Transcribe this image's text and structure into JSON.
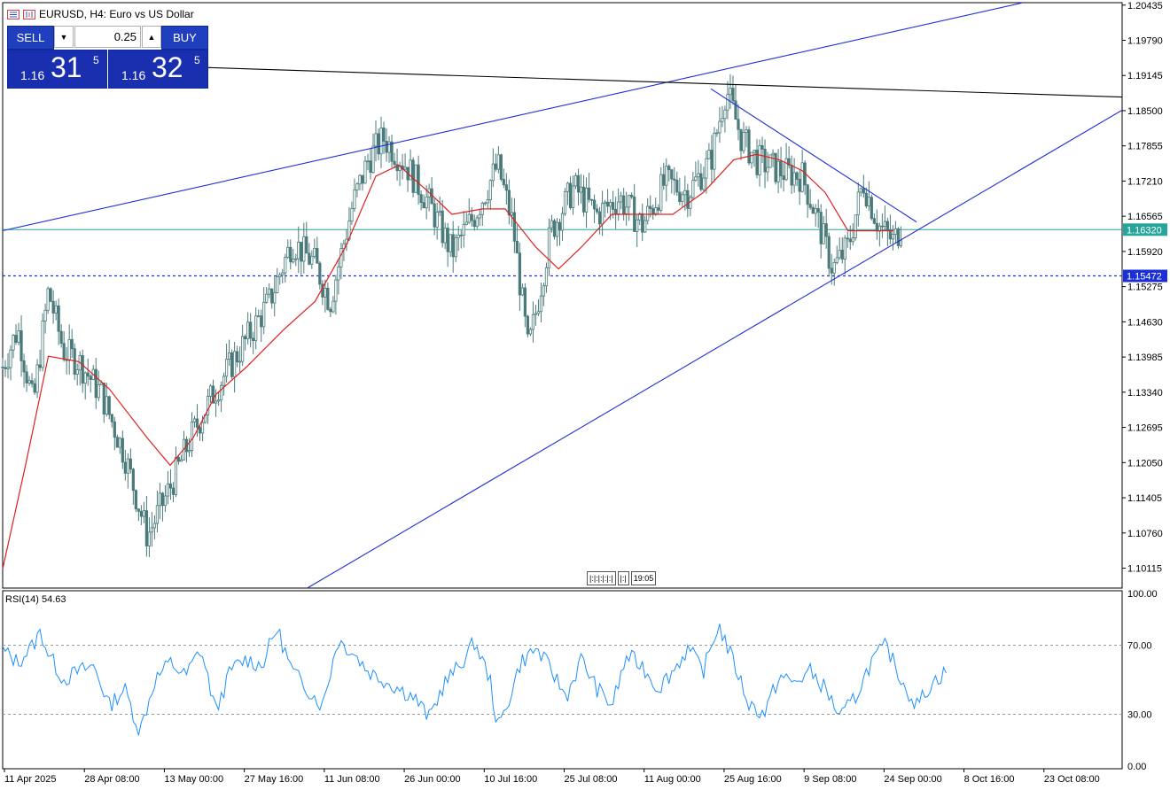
{
  "header": {
    "symbol_text": "EURUSD, H4:  Euro vs US Dollar"
  },
  "trade_panel": {
    "sell_label": "SELL",
    "buy_label": "BUY",
    "volume": "0.25",
    "sell_price": {
      "small": "1.16",
      "big": "31",
      "sup": "5"
    },
    "buy_price": {
      "small": "1.16",
      "big": "32",
      "sup": "5"
    }
  },
  "navigation": {
    "time_marker": "19:05"
  },
  "colors": {
    "trendline": "#1e2fd6",
    "horizontal_resistance": "#000000",
    "ma_line": "#e0201c",
    "candles": "#4a7a7a",
    "bid_line": "#26a69a",
    "dotted_level": "#1e2fd6",
    "rsi_line": "#1e90ff",
    "price_tag_bid": "#26a69a",
    "price_tag_level": "#1a2fd6"
  },
  "chart_data": [
    {
      "type": "candlestick",
      "title": "EURUSD, H4:  Euro vs US Dollar",
      "y_ticks": [
        "1.20435",
        "1.19790",
        "1.19145",
        "1.18500",
        "1.17855",
        "1.17210",
        "1.16565",
        "1.15920",
        "1.15275",
        "1.14630",
        "1.13985",
        "1.13340",
        "1.12695",
        "1.12050",
        "1.11405",
        "1.10760",
        "1.10115"
      ],
      "x_ticks": [
        "11 Apr 2025",
        "28 Apr 08:00",
        "13 May 00:00",
        "27 May 16:00",
        "11 Jun 08:00",
        "26 Jun 00:00",
        "10 Jul 16:00",
        "25 Jul 08:00",
        "11 Aug 00:00",
        "25 Aug 16:00",
        "9 Sep 08:00",
        "24 Sep 00:00",
        "8 Oct 16:00",
        "23 Oct 08:00"
      ],
      "ylim": [
        1.0975,
        1.2048
      ],
      "price_tags": {
        "bid": "1.16320",
        "level": "1.15472"
      },
      "bid_price": 1.1632,
      "dotted_level": 1.15472,
      "swing_path": [
        [
          0,
          1.138
        ],
        [
          2,
          1.145
        ],
        [
          4,
          1.131
        ],
        [
          6,
          1.152
        ],
        [
          8,
          1.141
        ],
        [
          10,
          1.139
        ],
        [
          13,
          1.133
        ],
        [
          16,
          1.122
        ],
        [
          19,
          1.107
        ],
        [
          22,
          1.116
        ],
        [
          25,
          1.126
        ],
        [
          28,
          1.134
        ],
        [
          32,
          1.143
        ],
        [
          35,
          1.15
        ],
        [
          38,
          1.161
        ],
        [
          41,
          1.157
        ],
        [
          43,
          1.15
        ],
        [
          46,
          1.168
        ],
        [
          48,
          1.176
        ],
        [
          50,
          1.18
        ],
        [
          53,
          1.175
        ],
        [
          56,
          1.168
        ],
        [
          59,
          1.159
        ],
        [
          62,
          1.166
        ],
        [
          65,
          1.175
        ],
        [
          67,
          1.164
        ],
        [
          69,
          1.141
        ],
        [
          70,
          1.148
        ],
        [
          72,
          1.163
        ],
        [
          75,
          1.171
        ],
        [
          78,
          1.166
        ],
        [
          81,
          1.169
        ],
        [
          84,
          1.164
        ],
        [
          87,
          1.172
        ],
        [
          90,
          1.17
        ],
        [
          93,
          1.176
        ],
        [
          95,
          1.189
        ],
        [
          97,
          1.18
        ],
        [
          99,
          1.176
        ],
        [
          102,
          1.174
        ],
        [
          105,
          1.173
        ],
        [
          107,
          1.165
        ],
        [
          109,
          1.156
        ],
        [
          111,
          1.16
        ],
        [
          113,
          1.172
        ],
        [
          115,
          1.164
        ],
        [
          117,
          1.161
        ],
        [
          118,
          1.164
        ]
      ],
      "ma_path": [
        [
          0,
          1.101
        ],
        [
          3,
          1.12
        ],
        [
          6,
          1.14
        ],
        [
          10,
          1.139
        ],
        [
          14,
          1.134
        ],
        [
          19,
          1.125
        ],
        [
          22,
          1.12
        ],
        [
          25,
          1.125
        ],
        [
          28,
          1.133
        ],
        [
          32,
          1.138
        ],
        [
          37,
          1.145
        ],
        [
          41,
          1.15
        ],
        [
          45,
          1.16
        ],
        [
          49,
          1.173
        ],
        [
          52,
          1.175
        ],
        [
          56,
          1.17
        ],
        [
          59,
          1.166
        ],
        [
          63,
          1.167
        ],
        [
          66,
          1.167
        ],
        [
          70,
          1.16
        ],
        [
          73,
          1.156
        ],
        [
          76,
          1.16
        ],
        [
          80,
          1.166
        ],
        [
          84,
          1.166
        ],
        [
          88,
          1.166
        ],
        [
          92,
          1.17
        ],
        [
          96,
          1.176
        ],
        [
          99,
          1.177
        ],
        [
          102,
          1.176
        ],
        [
          105,
          1.174
        ],
        [
          108,
          1.17
        ],
        [
          111,
          1.163
        ],
        [
          114,
          1.163
        ],
        [
          117,
          1.163
        ]
      ],
      "trendlines": [
        {
          "name": "upper-channel-line",
          "from": [
            0,
            1.163
          ],
          "to": [
            134,
            1.2048
          ]
        },
        {
          "name": "resistance-line",
          "from": [
            27,
            1.1929
          ],
          "to": [
            147,
            1.1875
          ]
        },
        {
          "name": "lower-channel-line",
          "from": [
            40,
            1.0975
          ],
          "to": [
            147,
            1.1851
          ]
        },
        {
          "name": "falling-wedge-line",
          "from": [
            93,
            1.189
          ],
          "to": [
            120,
            1.1646
          ]
        }
      ]
    },
    {
      "type": "line",
      "title": "RSI(14) 54.63",
      "indicator": "RSI(14)",
      "last_value": 54.63,
      "y_ticks": [
        "100.00",
        "70.00",
        "30.00",
        "0.00"
      ],
      "ylim": [
        0,
        100
      ],
      "levels": [
        70,
        30
      ],
      "rsi_path": [
        [
          0,
          67
        ],
        [
          2,
          60
        ],
        [
          4,
          70
        ],
        [
          5,
          78
        ],
        [
          6,
          65
        ],
        [
          8,
          50
        ],
        [
          10,
          55
        ],
        [
          12,
          58
        ],
        [
          14,
          35
        ],
        [
          16,
          45
        ],
        [
          18,
          20
        ],
        [
          20,
          50
        ],
        [
          22,
          60
        ],
        [
          24,
          52
        ],
        [
          26,
          68
        ],
        [
          28,
          32
        ],
        [
          30,
          56
        ],
        [
          32,
          62
        ],
        [
          34,
          58
        ],
        [
          36,
          80
        ],
        [
          38,
          55
        ],
        [
          40,
          45
        ],
        [
          42,
          35
        ],
        [
          44,
          73
        ],
        [
          46,
          66
        ],
        [
          48,
          55
        ],
        [
          50,
          50
        ],
        [
          52,
          45
        ],
        [
          54,
          40
        ],
        [
          56,
          28
        ],
        [
          58,
          48
        ],
        [
          60,
          58
        ],
        [
          62,
          72
        ],
        [
          64,
          50
        ],
        [
          65,
          22
        ],
        [
          66,
          32
        ],
        [
          68,
          60
        ],
        [
          70,
          68
        ],
        [
          72,
          56
        ],
        [
          74,
          40
        ],
        [
          76,
          62
        ],
        [
          78,
          45
        ],
        [
          80,
          35
        ],
        [
          82,
          64
        ],
        [
          84,
          58
        ],
        [
          86,
          45
        ],
        [
          88,
          55
        ],
        [
          90,
          68
        ],
        [
          92,
          55
        ],
        [
          94,
          82
        ],
        [
          96,
          60
        ],
        [
          98,
          36
        ],
        [
          100,
          30
        ],
        [
          102,
          52
        ],
        [
          104,
          48
        ],
        [
          106,
          55
        ],
        [
          108,
          45
        ],
        [
          110,
          28
        ],
        [
          112,
          40
        ],
        [
          114,
          60
        ],
        [
          116,
          70
        ],
        [
          118,
          50
        ],
        [
          120,
          35
        ],
        [
          122,
          48
        ],
        [
          124,
          55
        ]
      ]
    }
  ]
}
